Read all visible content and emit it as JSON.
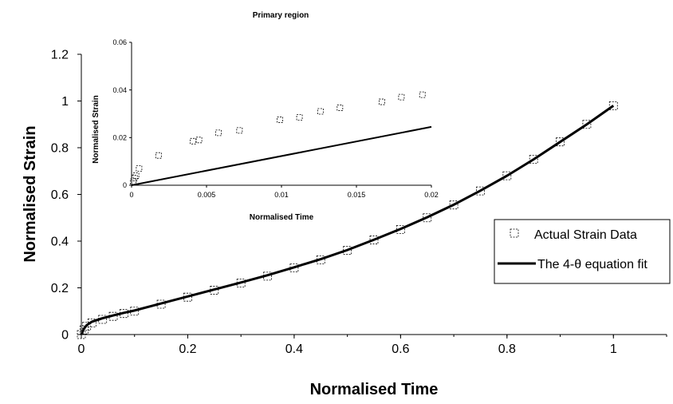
{
  "chart_data": [
    {
      "type": "scatter",
      "title": "",
      "xlabel": "Normalised Time",
      "ylabel": "Normalised Strain",
      "xlim": [
        0,
        1.1
      ],
      "ylim": [
        0,
        1.2
      ],
      "xticks": [
        "0",
        "0.2",
        "0.4",
        "0.6",
        "0.8",
        "1"
      ],
      "xtick_values": [
        0,
        0.2,
        0.4,
        0.6,
        0.8,
        1
      ],
      "yticks": [
        "0",
        "0.2",
        "0.4",
        "0.6",
        "0.8",
        "1",
        "1.2"
      ],
      "ytick_values": [
        0,
        0.2,
        0.4,
        0.6,
        0.8,
        1,
        1.2
      ],
      "grid": false,
      "legend": {
        "position": "right",
        "entries": [
          "Actual Strain Data",
          "The 4-θ equation fit"
        ]
      },
      "series": [
        {
          "name": "Actual Strain Data",
          "style": "markers",
          "x": [
            0,
            0.005,
            0.01,
            0.02,
            0.04,
            0.06,
            0.08,
            0.1,
            0.15,
            0.2,
            0.25,
            0.3,
            0.35,
            0.4,
            0.45,
            0.5,
            0.55,
            0.6,
            0.65,
            0.7,
            0.75,
            0.8,
            0.85,
            0.9,
            0.95,
            1.0
          ],
          "y": [
            0.0,
            0.02,
            0.035,
            0.05,
            0.065,
            0.078,
            0.09,
            0.1,
            0.13,
            0.16,
            0.19,
            0.22,
            0.25,
            0.285,
            0.32,
            0.36,
            0.405,
            0.45,
            0.5,
            0.555,
            0.615,
            0.68,
            0.75,
            0.825,
            0.9,
            0.98
          ]
        },
        {
          "name": "The 4-θ equation fit",
          "style": "line",
          "x": [
            0,
            0.005,
            0.01,
            0.02,
            0.04,
            0.06,
            0.08,
            0.1,
            0.15,
            0.2,
            0.25,
            0.3,
            0.35,
            0.4,
            0.45,
            0.5,
            0.55,
            0.6,
            0.65,
            0.7,
            0.75,
            0.8,
            0.85,
            0.9,
            0.95,
            1.0
          ],
          "y": [
            0.0,
            0.025,
            0.04,
            0.055,
            0.07,
            0.082,
            0.093,
            0.103,
            0.133,
            0.163,
            0.193,
            0.223,
            0.254,
            0.288,
            0.323,
            0.362,
            0.406,
            0.452,
            0.502,
            0.556,
            0.616,
            0.68,
            0.75,
            0.825,
            0.9,
            0.98
          ]
        }
      ]
    },
    {
      "type": "scatter",
      "title": "Primary region",
      "xlabel": "Normalised Time",
      "ylabel": "Normalised Strain",
      "xlim": [
        0,
        0.02
      ],
      "ylim": [
        0,
        0.06
      ],
      "xticks": [
        "0",
        "0.005",
        "0.01",
        "0.015",
        "0.02"
      ],
      "xtick_values": [
        0,
        0.005,
        0.01,
        0.015,
        0.02
      ],
      "yticks": [
        "0",
        "0.02",
        "0.04",
        "0.06"
      ],
      "ytick_values": [
        0,
        0.02,
        0.04,
        0.06
      ],
      "grid": false,
      "series": [
        {
          "name": "Actual Strain Data",
          "style": "markers",
          "x": [
            0.0001,
            0.0002,
            0.0003,
            0.0005,
            0.0018,
            0.0041,
            0.0045,
            0.0058,
            0.0072,
            0.0099,
            0.0112,
            0.0126,
            0.0139,
            0.0167,
            0.018,
            0.0194
          ],
          "y": [
            0.0015,
            0.003,
            0.004,
            0.007,
            0.0125,
            0.0185,
            0.019,
            0.022,
            0.023,
            0.0275,
            0.0285,
            0.031,
            0.0325,
            0.035,
            0.037,
            0.038
          ]
        },
        {
          "name": "The 4-θ equation fit",
          "style": "line",
          "x": [
            0,
            0.02
          ],
          "y": [
            0,
            0.0245
          ]
        }
      ]
    }
  ]
}
